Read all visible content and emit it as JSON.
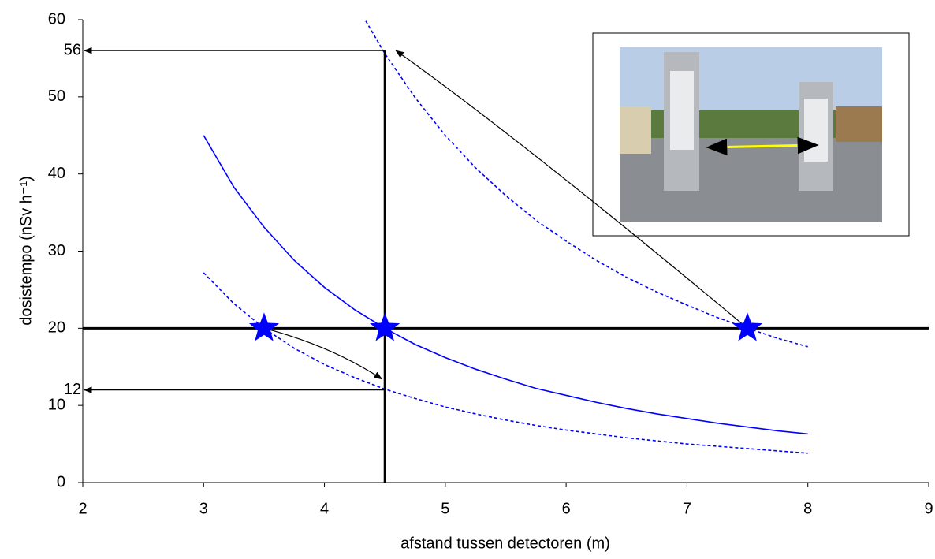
{
  "chart_data": {
    "type": "line",
    "x_label": "afstand tussen detectoren  (m)",
    "y_label": "dosistempo  (nSv h⁻¹)",
    "x": [
      3,
      3.25,
      3.5,
      3.75,
      4,
      4.25,
      4.5,
      4.75,
      5,
      5.25,
      5.5,
      5.75,
      6,
      6.25,
      6.5,
      6.75,
      7,
      7.25,
      7.5,
      7.75,
      8
    ],
    "series": [
      {
        "color": "#0000ff",
        "dash": false,
        "values": [
          45,
          38.3,
          33.1,
          28.8,
          25.3,
          22.4,
          20,
          17.9,
          16.2,
          14.7,
          13.4,
          12.2,
          11.3,
          10.4,
          9.6,
          8.9,
          8.3,
          7.7,
          7.2,
          6.7,
          6.3
        ]
      },
      {
        "color": "#0000ff",
        "dash": true,
        "values": [
          27.2,
          23.2,
          20,
          17.4,
          15.3,
          13.6,
          12.1,
          10.9,
          9.8,
          8.9,
          8.1,
          7.4,
          6.8,
          6.3,
          5.8,
          5.4,
          5.0,
          4.7,
          4.4,
          4.1,
          3.8
        ]
      },
      {
        "color": "#0000ff",
        "dash": true,
        "values": [
          null,
          null,
          null,
          null,
          null,
          62.3,
          55.6,
          49.9,
          45,
          40.8,
          37.2,
          34.0,
          31.3,
          28.8,
          26.6,
          24.7,
          23.0,
          21.4,
          20,
          18.7,
          17.6
        ]
      }
    ],
    "markers": {
      "color": "#0000ff",
      "x": [
        3.5,
        4.5,
        7.5
      ],
      "y": [
        20,
        20,
        20
      ]
    },
    "hlines": [
      20
    ],
    "vlines": [
      4.5
    ],
    "annotations": [
      56,
      12
    ],
    "xlim": [
      2,
      9
    ],
    "xticks": [
      2,
      3,
      4,
      5,
      6,
      7,
      8,
      9
    ],
    "ylim": [
      0,
      60
    ],
    "yticks": [
      0,
      10,
      20,
      30,
      40,
      50,
      60
    ]
  }
}
